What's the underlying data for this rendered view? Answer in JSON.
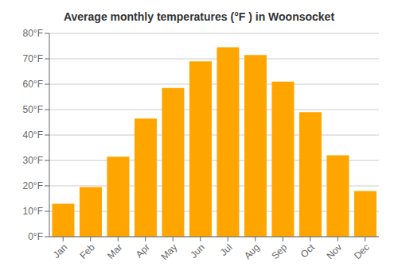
{
  "chart_data": {
    "type": "bar",
    "title": "Average monthly temperatures (°F ) in Woonsocket",
    "categories": [
      "Jan",
      "Feb",
      "Mar",
      "Apr",
      "May",
      "Jun",
      "Jul",
      "Aug",
      "Sep",
      "Oct",
      "Nov",
      "Dec"
    ],
    "values": [
      13,
      19.5,
      31.5,
      46.5,
      58.5,
      69,
      74.5,
      71.5,
      61,
      49,
      32,
      18
    ],
    "color": "#FFA500",
    "ylim": [
      0,
      80
    ],
    "yticks": [
      {
        "value": 0,
        "label": "0°F"
      },
      {
        "value": 10,
        "label": "10°F"
      },
      {
        "value": 20,
        "label": "20°F"
      },
      {
        "value": 30,
        "label": "30°F"
      },
      {
        "value": 40,
        "label": "40°F"
      },
      {
        "value": 50,
        "label": "50°F"
      },
      {
        "value": 60,
        "label": "60°F"
      },
      {
        "value": 70,
        "label": "70°F"
      },
      {
        "value": 80,
        "label": "80°F"
      }
    ],
    "grid": true
  }
}
